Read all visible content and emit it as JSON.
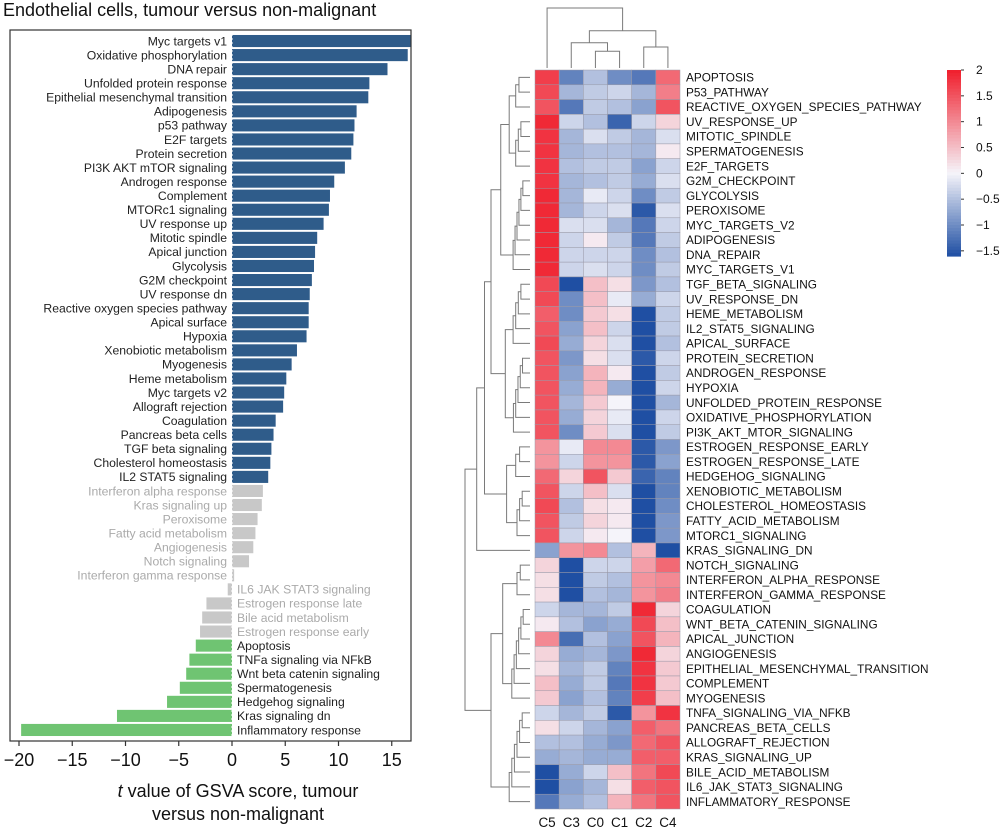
{
  "chart_data": [
    {
      "type": "bar",
      "orientation": "horizontal",
      "title": "Endothelial cells, tumour versus non-malignant",
      "xlabel_italic": "t",
      "xlabel_rest": " value of GSVA score, tumour",
      "xlabel_line2": "versus non-malignant",
      "xlim": [
        -21,
        17
      ],
      "xticks": [
        -20,
        -15,
        -10,
        -5,
        0,
        5,
        10,
        15
      ],
      "xtick_labels": [
        "−20",
        "−15",
        "−10",
        "−5",
        "0",
        "5",
        "10",
        "15"
      ],
      "threshold": 3.2,
      "colors": {
        "up": "#2f5c8a",
        "down": "#6fc472",
        "ns": "#c8c8c8",
        "label": "#222222",
        "label_ns": "#aaaaaa"
      },
      "categories": [
        "Myc targets v1",
        "Oxidative phosphorylation",
        "DNA repair",
        "Unfolded protein response",
        "Epithelial mesenchymal transition",
        "Adipogenesis",
        "p53 pathway",
        "E2F targets",
        "Protein secretion",
        "PI3K AKT mTOR signaling",
        "Androgen response",
        "Complement",
        "MTORc1 signaling",
        "UV response up",
        "Mitotic spindle",
        "Apical junction",
        "Glycolysis",
        "G2M checkpoint",
        "UV response dn",
        "Reactive oxygen species pathway",
        "Apical surface",
        "Hypoxia",
        "Xenobiotic metabolism",
        "Myogenesis",
        "Heme metabolism",
        "Myc targets v2",
        "Allograft rejection",
        "Coagulation",
        "Pancreas beta cells",
        "TGF beta signaling",
        "Cholesterol homeostasis",
        "IL2 STAT5 signaling",
        "Interferon alpha response",
        "Kras signaling up",
        "Peroxisome",
        "Fatty acid metabolism",
        "Angiogenesis",
        "Notch signaling",
        "Interferon gamma response",
        "IL6 JAK STAT3 signaling",
        "Estrogen response late",
        "Bile acid metabolism",
        "Estrogen response early",
        "Apoptosis",
        "TNFa signaling via NFkB",
        "Wnt beta catenin signaling",
        "Spermatogenesis",
        "Hedgehog signaling",
        "Kras signaling dn",
        "Inflammatory response"
      ],
      "values": [
        16.8,
        16.5,
        14.6,
        12.9,
        12.8,
        11.7,
        11.5,
        11.4,
        11.2,
        10.6,
        9.6,
        9.2,
        9.1,
        8.6,
        8.0,
        7.8,
        7.7,
        7.5,
        7.3,
        7.2,
        7.2,
        7.0,
        6.1,
        5.6,
        5.1,
        4.9,
        4.8,
        4.1,
        3.9,
        3.7,
        3.6,
        3.4,
        2.9,
        2.8,
        2.4,
        2.2,
        2.0,
        1.6,
        0.2,
        -0.4,
        -2.4,
        -2.8,
        -3.0,
        -3.4,
        -4.0,
        -4.3,
        -4.9,
        -6.1,
        -10.8,
        -19.8
      ]
    },
    {
      "type": "heatmap",
      "columns": [
        "C5",
        "C3",
        "C0",
        "C1",
        "C2",
        "C4"
      ],
      "rows": [
        "APOPTOSIS",
        "P53_PATHWAY",
        "REACTIVE_OXYGEN_SPECIES_PATHWAY",
        "UV_RESPONSE_UP",
        "MITOTIC_SPINDLE",
        "SPERMATOGENESIS",
        "E2F_TARGETS",
        "G2M_CHECKPOINT",
        "GLYCOLYSIS",
        "PEROXISOME",
        "MYC_TARGETS_V2",
        "ADIPOGENESIS",
        "DNA_REPAIR",
        "MYC_TARGETS_V1",
        "TGF_BETA_SIGNALING",
        "UV_RESPONSE_DN",
        "HEME_METABOLISM",
        "IL2_STAT5_SIGNALING",
        "APICAL_SURFACE",
        "PROTEIN_SECRETION",
        "ANDROGEN_RESPONSE",
        "HYPOXIA",
        "UNFOLDED_PROTEIN_RESPONSE",
        "OXIDATIVE_PHOSPHORYLATION",
        "PI3K_AKT_MTOR_SIGNALING",
        "ESTROGEN_RESPONSE_EARLY",
        "ESTROGEN_RESPONSE_LATE",
        "HEDGEHOG_SIGNALING",
        "XENOBIOTIC_METABOLISM",
        "CHOLESTEROL_HOMEOSTASIS",
        "FATTY_ACID_METABOLISM",
        "MTORC1_SIGNALING",
        "KRAS_SIGNALING_DN",
        "NOTCH_SIGNALING",
        "INTERFERON_ALPHA_RESPONSE",
        "INTERFERON_GAMMA_RESPONSE",
        "COAGULATION",
        "WNT_BETA_CATENIN_SIGNALING",
        "APICAL_JUNCTION",
        "ANGIOGENESIS",
        "EPITHELIAL_MESENCHYMAL_TRANSITION",
        "COMPLEMENT",
        "MYOGENESIS",
        "TNFA_SIGNALING_VIA_NFKB",
        "PANCREAS_BETA_CELLS",
        "ALLOGRAFT_REJECTION",
        "KRAS_SIGNALING_UP",
        "BILE_ACID_METABOLISM",
        "IL6_JAK_STAT3_SIGNALING",
        "INFLAMMATORY_RESPONSE"
      ],
      "values": [
        [
          1.7,
          -1.1,
          -0.5,
          -1.0,
          -1.2,
          1.3
        ],
        [
          1.6,
          -0.6,
          -0.4,
          -0.3,
          -0.6,
          1.1
        ],
        [
          1.5,
          -1.2,
          -0.4,
          -0.5,
          -0.8,
          1.5
        ],
        [
          1.9,
          -0.3,
          -0.5,
          -1.4,
          -0.3,
          0.3
        ],
        [
          1.8,
          -0.6,
          -0.2,
          -0.4,
          -0.6,
          -0.2
        ],
        [
          1.8,
          -0.6,
          -0.5,
          -0.5,
          -0.6,
          0.1
        ],
        [
          1.8,
          -0.5,
          -0.4,
          -0.4,
          -0.8,
          -0.3
        ],
        [
          1.8,
          -0.6,
          -0.5,
          -0.4,
          -0.7,
          -0.2
        ],
        [
          1.9,
          -0.6,
          -0.1,
          -0.3,
          -1.0,
          -0.4
        ],
        [
          1.9,
          -0.6,
          -0.3,
          -0.2,
          -1.5,
          -0.2
        ],
        [
          1.9,
          -0.2,
          -0.2,
          -0.6,
          -1.2,
          -0.3
        ],
        [
          1.9,
          -0.3,
          0.1,
          -0.4,
          -1.2,
          -0.4
        ],
        [
          1.9,
          -0.3,
          -0.3,
          -0.3,
          -1.0,
          -0.5
        ],
        [
          1.9,
          -0.3,
          -0.2,
          -0.3,
          -1.0,
          -0.4
        ],
        [
          1.6,
          -1.7,
          0.5,
          0.2,
          -0.9,
          -0.5
        ],
        [
          1.6,
          -1.0,
          0.5,
          -0.1,
          -0.7,
          -0.3
        ],
        [
          1.4,
          -1.0,
          0.4,
          0.2,
          -1.6,
          -0.4
        ],
        [
          1.5,
          -0.8,
          0.5,
          -0.3,
          -1.6,
          -0.4
        ],
        [
          1.6,
          -0.7,
          0.3,
          -0.2,
          -1.6,
          -0.5
        ],
        [
          1.5,
          -0.9,
          0.2,
          -0.2,
          -1.5,
          -0.3
        ],
        [
          1.5,
          -0.8,
          0.6,
          0.1,
          -1.6,
          -0.4
        ],
        [
          1.5,
          -0.7,
          0.6,
          -0.7,
          -1.6,
          -0.3
        ],
        [
          1.5,
          -0.6,
          0.4,
          0.0,
          -1.6,
          -0.6
        ],
        [
          1.5,
          -0.7,
          0.3,
          -0.1,
          -1.6,
          -0.3
        ],
        [
          1.5,
          -1.0,
          0.4,
          -0.2,
          -1.6,
          -0.4
        ],
        [
          0.9,
          -0.1,
          1.0,
          1.0,
          -1.5,
          -0.9
        ],
        [
          0.9,
          -0.3,
          0.9,
          0.9,
          -1.5,
          -0.8
        ],
        [
          1.3,
          0.3,
          1.5,
          0.4,
          -1.4,
          -1.1
        ],
        [
          1.5,
          -0.3,
          0.5,
          -0.2,
          -1.6,
          -1.1
        ],
        [
          1.6,
          -0.5,
          0.2,
          0.1,
          -1.6,
          -1.0
        ],
        [
          1.5,
          -0.4,
          0.3,
          0.1,
          -1.6,
          -0.9
        ],
        [
          1.5,
          -0.3,
          0.1,
          0.0,
          -1.6,
          -0.9
        ],
        [
          -0.8,
          0.9,
          1.0,
          -0.5,
          0.6,
          -1.6
        ],
        [
          0.3,
          -1.7,
          -0.3,
          -0.3,
          0.8,
          1.3
        ],
        [
          0.2,
          -1.8,
          -0.4,
          -0.5,
          0.9,
          1.0
        ],
        [
          0.2,
          -1.8,
          -0.5,
          -0.6,
          0.9,
          1.1
        ],
        [
          -0.3,
          -0.6,
          -0.6,
          -0.4,
          1.9,
          0.3
        ],
        [
          0.1,
          -0.5,
          -0.8,
          -0.7,
          1.6,
          0.5
        ],
        [
          1.0,
          -1.3,
          -0.5,
          -0.8,
          1.5,
          0.6
        ],
        [
          0.3,
          -0.7,
          -0.6,
          -0.9,
          1.9,
          0.3
        ],
        [
          0.2,
          -0.6,
          -0.4,
          -1.1,
          1.8,
          0.4
        ],
        [
          0.5,
          -0.7,
          -0.4,
          -1.2,
          1.8,
          0.4
        ],
        [
          0.4,
          -0.8,
          -0.5,
          -1.1,
          1.7,
          0.5
        ],
        [
          -0.3,
          -0.6,
          -0.4,
          -1.5,
          0.9,
          1.8
        ],
        [
          0.2,
          -0.3,
          -0.6,
          -0.8,
          1.4,
          1.2
        ],
        [
          -0.5,
          -0.5,
          -0.7,
          -0.9,
          1.3,
          1.5
        ],
        [
          -0.7,
          -0.6,
          -0.7,
          -0.7,
          1.4,
          1.4
        ],
        [
          -1.6,
          -0.7,
          -0.3,
          0.5,
          1.2,
          1.6
        ],
        [
          -1.6,
          -0.8,
          -0.6,
          0.2,
          1.4,
          1.5
        ],
        [
          -1.2,
          -0.7,
          -0.5,
          0.6,
          1.2,
          1.5
        ]
      ],
      "color_scale": {
        "min": -1.6,
        "max": 2,
        "low": "#1f4fa3",
        "mid": "#f5f4fa",
        "high": "#f01e2c"
      },
      "colorbar": {
        "ticks": [
          2,
          1.5,
          1,
          0.5,
          0,
          -0.5,
          -1,
          -1.5
        ],
        "tick_labels": [
          "2",
          "1.5",
          "1",
          "0.5",
          "0",
          "−0.5",
          "−1",
          "−1.5"
        ]
      }
    }
  ]
}
